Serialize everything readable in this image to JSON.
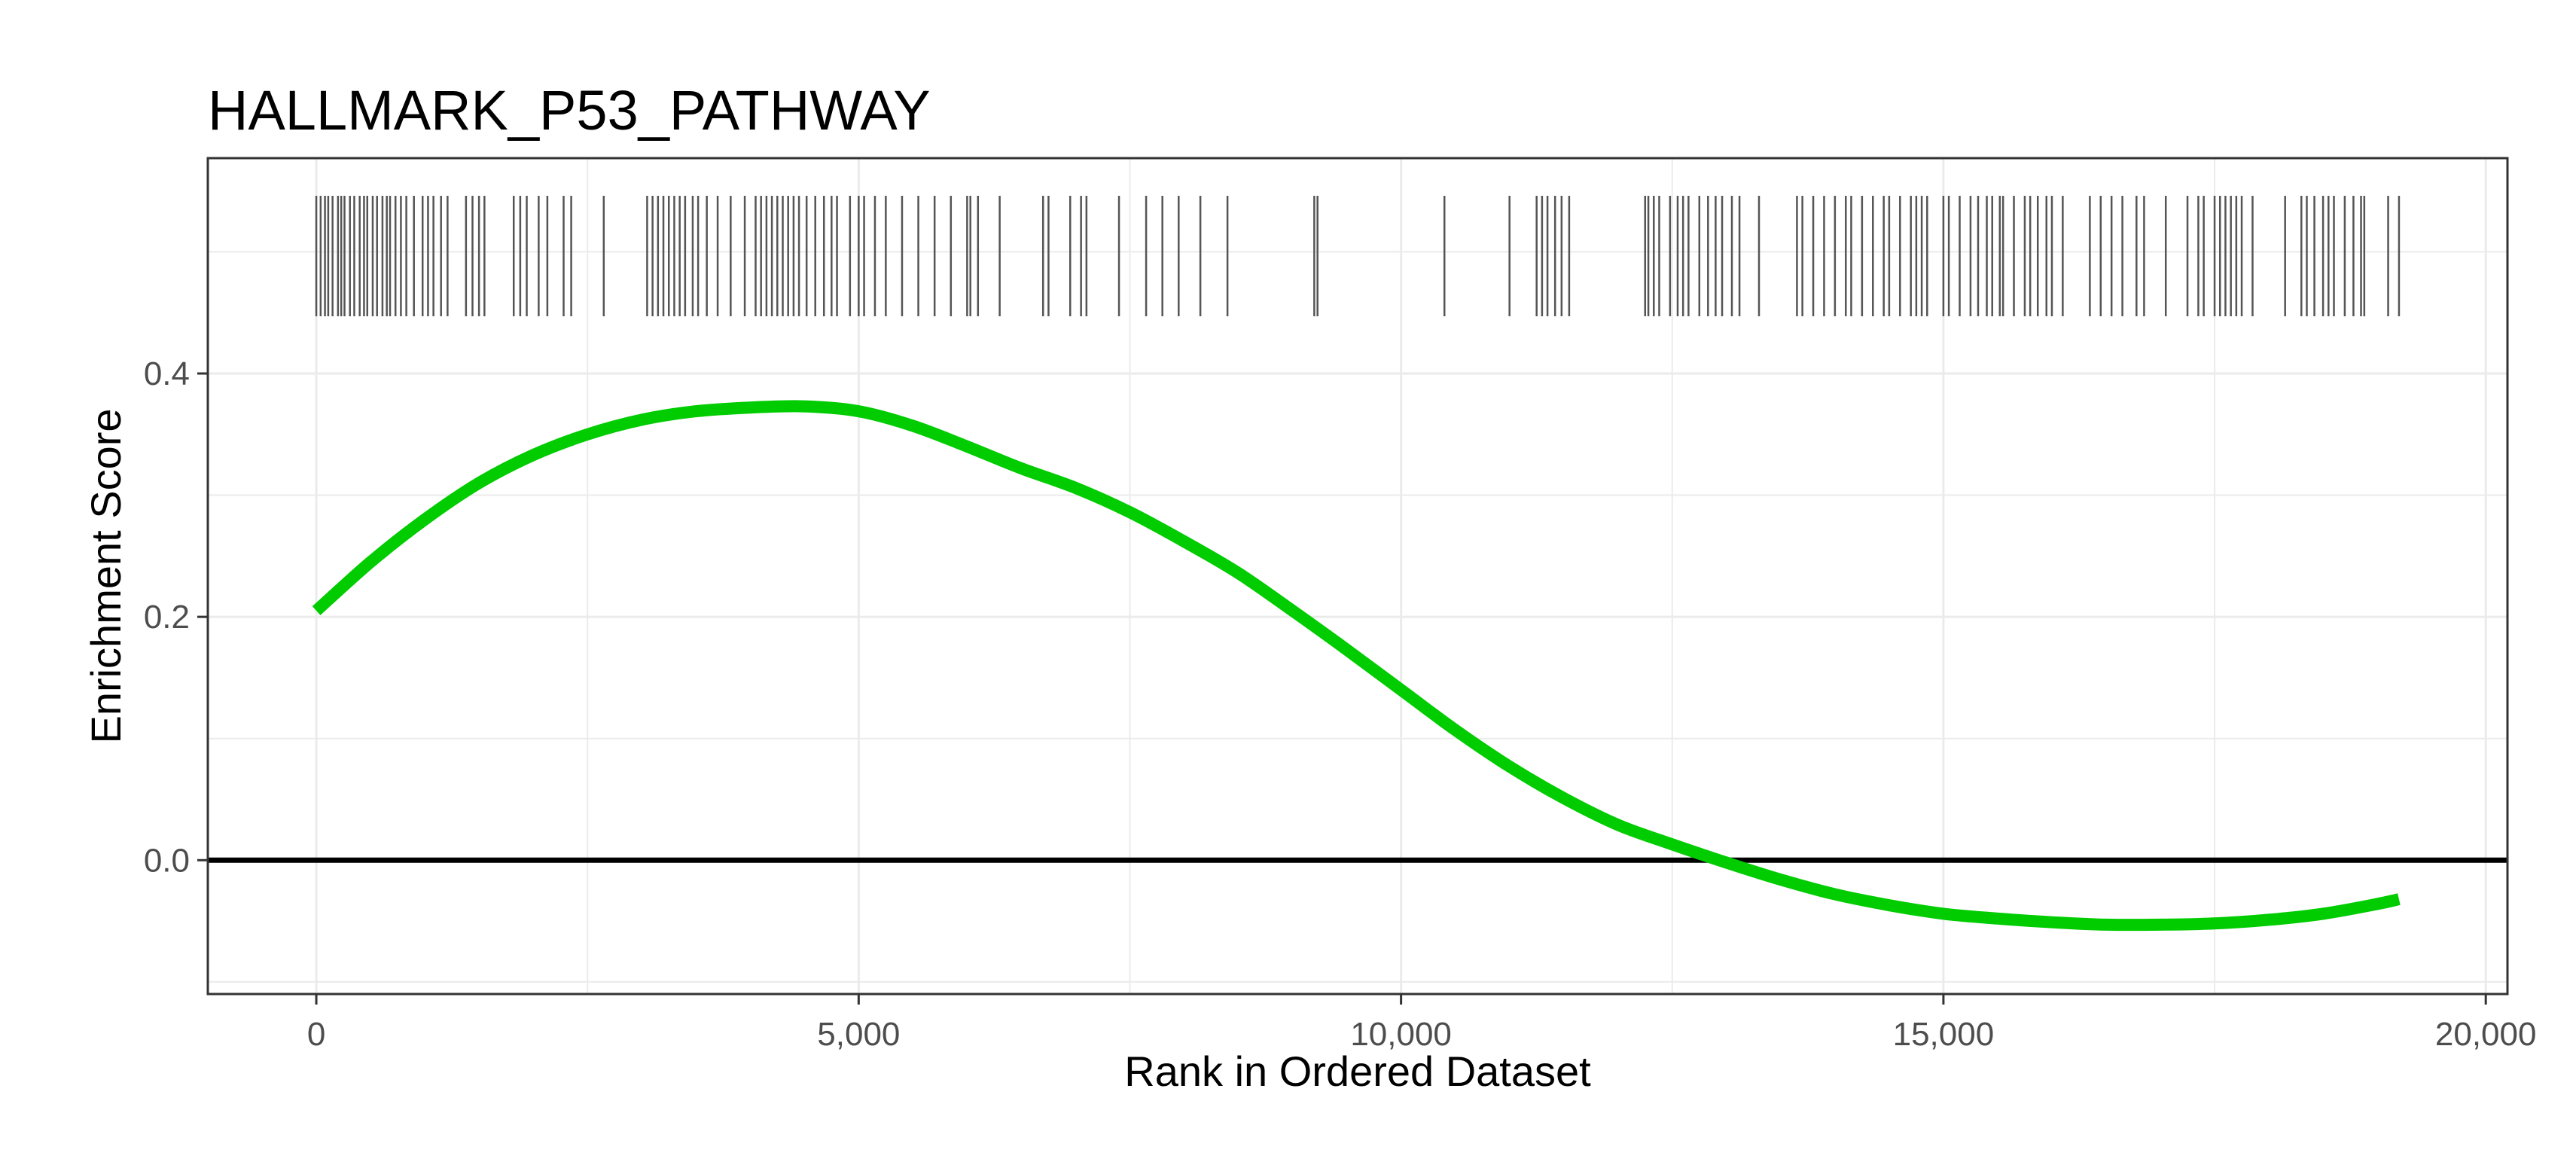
{
  "chart_data": {
    "type": "line",
    "title": "HALLMARK_P53_PATHWAY",
    "xlabel": "Rank in Ordered Dataset",
    "ylabel": "Enrichment Score",
    "xlim": [
      -1000,
      20200
    ],
    "ylim": [
      -0.11,
      0.577
    ],
    "x_ticks": [
      0,
      5000,
      10000,
      15000,
      20000
    ],
    "x_tick_labels": [
      "0",
      "5,000",
      "10,000",
      "15,000",
      "20,000"
    ],
    "y_ticks": [
      0.0,
      0.2,
      0.4
    ],
    "y_tick_labels": [
      "0.0",
      "0.2",
      "0.4"
    ],
    "grid": true,
    "zero_line": true,
    "series": [
      {
        "x": [
          0,
          500,
          1000,
          1500,
          2000,
          2500,
          3000,
          3500,
          4000,
          4500,
          5000,
          5500,
          6000,
          6500,
          7000,
          7500,
          8000,
          8500,
          9000,
          9500,
          10000,
          10500,
          11000,
          11500,
          12000,
          12500,
          13000,
          13500,
          14000,
          14500,
          15000,
          15500,
          16000,
          16500,
          17000,
          17500,
          18000,
          18500,
          19000,
          19200
        ],
        "y": [
          0.205,
          0.245,
          0.28,
          0.31,
          0.333,
          0.35,
          0.362,
          0.369,
          0.372,
          0.373,
          0.369,
          0.357,
          0.34,
          0.322,
          0.306,
          0.286,
          0.262,
          0.236,
          0.205,
          0.173,
          0.14,
          0.107,
          0.077,
          0.051,
          0.029,
          0.013,
          -0.002,
          -0.016,
          -0.028,
          -0.037,
          -0.044,
          -0.048,
          -0.051,
          -0.053,
          -0.053,
          -0.052,
          -0.049,
          -0.044,
          -0.036,
          -0.032
        ]
      }
    ],
    "gene_hits": [
      0,
      40,
      80,
      110,
      150,
      200,
      230,
      260,
      310,
      350,
      400,
      440,
      470,
      520,
      560,
      610,
      650,
      680,
      730,
      780,
      830,
      900,
      980,
      1030,
      1080,
      1150,
      1210,
      1380,
      1440,
      1500,
      1550,
      1820,
      1880,
      1940,
      2050,
      2130,
      2280,
      2350,
      2650,
      3050,
      3100,
      3150,
      3200,
      3250,
      3300,
      3350,
      3400,
      3470,
      3520,
      3600,
      3700,
      3820,
      3950,
      4050,
      4100,
      4150,
      4200,
      4250,
      4300,
      4350,
      4400,
      4450,
      4520,
      4600,
      4680,
      4750,
      4800,
      4920,
      5000,
      5050,
      5150,
      5250,
      5400,
      5550,
      5700,
      5850,
      6000,
      6030,
      6100,
      6300,
      6700,
      6750,
      6950,
      7050,
      7100,
      7400,
      7650,
      7800,
      7950,
      8150,
      8400,
      9200,
      9230,
      10400,
      11000,
      11250,
      11300,
      11350,
      11420,
      11480,
      11550,
      12250,
      12280,
      12330,
      12380,
      12480,
      12550,
      12600,
      12650,
      12750,
      12830,
      12900,
      12960,
      13050,
      13120,
      13300,
      13650,
      13700,
      13800,
      13900,
      14000,
      14100,
      14150,
      14250,
      14350,
      14450,
      14500,
      14600,
      14700,
      14750,
      14800,
      14850,
      15000,
      15050,
      15150,
      15250,
      15320,
      15400,
      15450,
      15520,
      15550,
      15650,
      15750,
      15800,
      15870,
      15950,
      16000,
      16100,
      16350,
      16450,
      16550,
      16650,
      16780,
      16850,
      17050,
      17250,
      17350,
      17400,
      17500,
      17550,
      17600,
      17650,
      17700,
      17750,
      17850,
      18150,
      18300,
      18350,
      18420,
      18500,
      18550,
      18600,
      18700,
      18780,
      18850,
      18880,
      19100,
      19200
    ]
  },
  "colors": {
    "curve": "#00cc00",
    "ticks": "#555555",
    "zero_line": "#000000",
    "grid": "#ebebeb",
    "border": "#333333",
    "axis_text": "#4d4d4d"
  }
}
